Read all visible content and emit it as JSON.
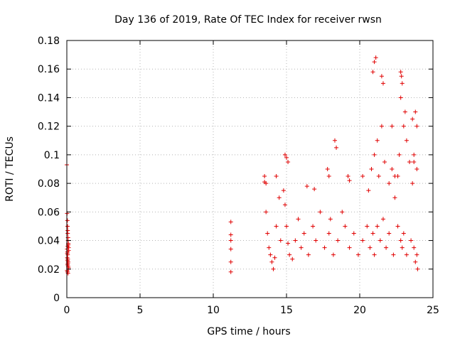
{
  "chart_data": {
    "type": "scatter",
    "title": "Day 136 of 2019, Rate Of TEC Index for receiver rwsn",
    "xlabel": "GPS time / hours",
    "ylabel": "ROTI / TECUs",
    "xlim": [
      0,
      25
    ],
    "ylim": [
      0,
      0.18
    ],
    "x_ticks": [
      0,
      5,
      10,
      15,
      20,
      25
    ],
    "x_tick_labels": [
      "0",
      "5",
      "10",
      "15",
      "20",
      "25"
    ],
    "y_ticks": [
      0,
      0.02,
      0.04,
      0.06,
      0.08,
      0.1,
      0.12,
      0.14,
      0.16,
      0.18
    ],
    "y_tick_labels": [
      "0",
      "0.02",
      "0.04",
      "0.06",
      "0.08",
      "0.1",
      "0.12",
      "0.14",
      "0.16",
      "0.18"
    ],
    "grid": true,
    "marker": "+",
    "color": "#e00000",
    "series": [
      {
        "x": [
          0.0,
          0.02,
          0.04,
          0.05,
          0.06,
          0.08,
          0.1,
          0.12,
          0.02,
          0.04,
          0.06,
          0.03,
          0.05,
          0.07,
          0.09,
          0.11,
          0.04,
          0.08,
          0.1,
          0.06,
          0.12,
          0.03,
          0.07,
          0.09,
          0.05,
          0.11,
          0.02,
          0.08,
          0.06,
          11.2,
          11.2,
          11.2,
          11.2,
          11.2,
          11.2,
          13.5,
          13.5,
          13.6,
          13.7,
          13.8,
          13.9,
          14.0,
          14.1,
          14.2,
          14.3,
          14.5,
          14.6,
          14.8,
          14.9,
          15.0,
          15.1,
          15.2,
          15.4,
          15.6,
          15.8,
          16.0,
          16.2,
          16.5,
          16.8,
          17.0,
          17.3,
          17.6,
          17.9,
          18.0,
          18.2,
          18.5,
          18.8,
          19.0,
          19.3,
          19.6,
          19.9,
          20.2,
          20.5,
          20.7,
          20.9,
          21.0,
          21.2,
          21.4,
          21.6,
          21.8,
          22.0,
          22.3,
          22.6,
          22.8,
          22.9,
          23.0,
          23.2,
          23.5,
          23.7,
          23.8,
          23.9,
          23.95,
          14.9,
          15.0,
          15.1,
          16.4,
          16.9,
          17.8,
          17.9,
          18.3,
          18.4,
          19.3,
          20.2,
          20.6,
          20.8,
          21.0,
          21.2,
          21.3,
          21.5,
          21.7,
          22.0,
          22.2,
          22.4,
          22.6,
          22.7,
          22.8,
          23.0,
          23.2,
          23.4,
          23.6,
          23.7,
          23.8,
          23.9,
          20.9,
          21.0,
          21.1,
          22.8,
          22.85,
          22.9,
          23.1,
          23.6,
          21.5,
          21.6,
          22.2,
          22.4,
          13.6,
          14.3,
          19.2,
          23.7,
          23.9
        ],
        "y": [
          0.093,
          0.059,
          0.054,
          0.05,
          0.047,
          0.04,
          0.037,
          0.035,
          0.034,
          0.032,
          0.03,
          0.028,
          0.026,
          0.024,
          0.022,
          0.02,
          0.018,
          0.017,
          0.038,
          0.036,
          0.033,
          0.031,
          0.027,
          0.025,
          0.023,
          0.021,
          0.019,
          0.042,
          0.045,
          0.053,
          0.044,
          0.04,
          0.034,
          0.025,
          0.018,
          0.085,
          0.081,
          0.06,
          0.045,
          0.035,
          0.03,
          0.025,
          0.02,
          0.028,
          0.05,
          0.07,
          0.04,
          0.075,
          0.065,
          0.05,
          0.038,
          0.03,
          0.027,
          0.04,
          0.055,
          0.035,
          0.045,
          0.03,
          0.05,
          0.04,
          0.06,
          0.035,
          0.045,
          0.055,
          0.03,
          0.04,
          0.06,
          0.05,
          0.035,
          0.045,
          0.03,
          0.04,
          0.05,
          0.035,
          0.045,
          0.03,
          0.05,
          0.04,
          0.055,
          0.035,
          0.045,
          0.03,
          0.05,
          0.04,
          0.035,
          0.045,
          0.03,
          0.04,
          0.035,
          0.025,
          0.03,
          0.02,
          0.1,
          0.098,
          0.095,
          0.078,
          0.076,
          0.09,
          0.085,
          0.11,
          0.105,
          0.082,
          0.085,
          0.075,
          0.09,
          0.1,
          0.11,
          0.085,
          0.12,
          0.095,
          0.08,
          0.09,
          0.07,
          0.085,
          0.1,
          0.14,
          0.12,
          0.11,
          0.095,
          0.08,
          0.1,
          0.13,
          0.12,
          0.158,
          0.165,
          0.168,
          0.158,
          0.155,
          0.15,
          0.13,
          0.125,
          0.155,
          0.15,
          0.12,
          0.085,
          0.08,
          0.085,
          0.085,
          0.095,
          0.09
        ]
      }
    ]
  }
}
